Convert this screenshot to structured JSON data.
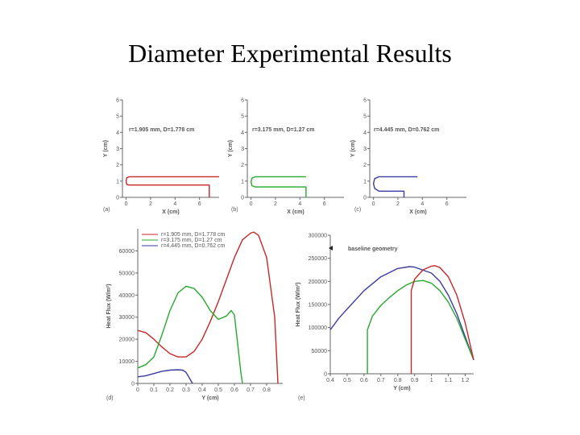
{
  "slide": {
    "title": "Diameter Experimental Results"
  },
  "colors": {
    "red": "#c62828",
    "green": "#27a82f",
    "blue": "#3a3aa0",
    "axis": "#666666"
  },
  "chart_data": [
    {
      "type": "line",
      "panel_label": "(a)",
      "annotation": "r=1.905 mm, D=1.778 cm",
      "xlabel": "X (cm)",
      "ylabel": "Y (cm)",
      "xlim": [
        -0.3,
        7.6
      ],
      "ylim": [
        0,
        6
      ],
      "xticks": [
        0,
        2,
        4,
        6
      ],
      "yticks": [
        0,
        1,
        2,
        3,
        4,
        5,
        6
      ],
      "series": [
        {
          "color": "red",
          "x": [
            7.6,
            0.25,
            0.05,
            0,
            0.05,
            0.25,
            6.8,
            6.8
          ],
          "y": [
            1.27,
            1.27,
            1.2,
            1.0,
            0.8,
            0.76,
            0.76,
            0
          ]
        }
      ]
    },
    {
      "type": "line",
      "panel_label": "(b)",
      "annotation": "r=3.175 mm, D=1.27 cm",
      "xlabel": "X (cm)",
      "ylabel": "Y (cm)",
      "xlim": [
        -0.3,
        7.6
      ],
      "ylim": [
        0,
        6
      ],
      "xticks": [
        0,
        2,
        4,
        6
      ],
      "yticks": [
        0,
        1,
        2,
        3,
        4,
        5,
        6
      ],
      "series": [
        {
          "color": "green",
          "x": [
            4.5,
            0.35,
            0.08,
            0,
            0.08,
            0.35,
            4.5,
            4.5
          ],
          "y": [
            1.27,
            1.27,
            1.18,
            0.95,
            0.72,
            0.64,
            0.64,
            0
          ]
        }
      ]
    },
    {
      "type": "line",
      "panel_label": "(c)",
      "annotation": "r=4.445 mm, D=0.762 cm",
      "xlabel": "X (cm)",
      "ylabel": "Y (cm)",
      "xlim": [
        -0.3,
        7.6
      ],
      "ylim": [
        0,
        6
      ],
      "xticks": [
        0,
        2,
        4,
        6
      ],
      "yticks": [
        0,
        1,
        2,
        3,
        4,
        5,
        6
      ],
      "series": [
        {
          "color": "blue",
          "x": [
            3.6,
            0.45,
            0.1,
            0,
            0.1,
            0.45,
            2.5,
            2.5
          ],
          "y": [
            1.27,
            1.27,
            1.15,
            0.85,
            0.55,
            0.38,
            0.38,
            0
          ]
        }
      ]
    },
    {
      "type": "line",
      "panel_label": "(d)",
      "xlabel": "Y (cm)",
      "ylabel": "Heat Flux (W/m²)",
      "xlim": [
        0,
        0.9
      ],
      "ylim": [
        0,
        70000
      ],
      "xticks": [
        0,
        0.1,
        0.2,
        0.3,
        0.4,
        0.5,
        0.6,
        0.7,
        0.8
      ],
      "yticks": [
        0,
        10000,
        20000,
        30000,
        40000,
        50000,
        60000
      ],
      "legend": [
        "r=1.905 mm, D=1.778 cm",
        "r=3.175 mm, D=1.27 cm",
        "r=4.445 mm, D=0.762 cm"
      ],
      "series": [
        {
          "color": "red",
          "x": [
            0,
            0.05,
            0.1,
            0.15,
            0.2,
            0.25,
            0.3,
            0.35,
            0.4,
            0.45,
            0.5,
            0.55,
            0.6,
            0.65,
            0.7,
            0.72,
            0.75,
            0.8,
            0.85,
            0.87
          ],
          "y": [
            24000,
            23000,
            20000,
            16500,
            13500,
            12000,
            12000,
            14500,
            20000,
            28000,
            37000,
            47000,
            57000,
            65000,
            68000,
            68500,
            67000,
            57000,
            30000,
            0
          ]
        },
        {
          "color": "green",
          "x": [
            0,
            0.05,
            0.1,
            0.15,
            0.2,
            0.25,
            0.3,
            0.35,
            0.4,
            0.45,
            0.5,
            0.55,
            0.58,
            0.6,
            0.62,
            0.64,
            0.65
          ],
          "y": [
            7000,
            8500,
            12000,
            22000,
            33000,
            41000,
            44000,
            43000,
            39000,
            33000,
            29000,
            30500,
            33000,
            31000,
            18000,
            5000,
            0
          ]
        },
        {
          "color": "blue",
          "x": [
            0,
            0.05,
            0.1,
            0.15,
            0.2,
            0.25,
            0.28,
            0.3,
            0.32,
            0.34
          ],
          "y": [
            3000,
            3500,
            4500,
            5500,
            6000,
            6200,
            6000,
            5000,
            2500,
            0
          ]
        }
      ]
    },
    {
      "type": "line",
      "panel_label": "(e)",
      "annotation": "baseline geometry",
      "xlabel": "Y (cm)",
      "ylabel": "Heat Flux (W/m²)",
      "xlim": [
        0.4,
        1.25
      ],
      "ylim": [
        0,
        300000
      ],
      "xticks": [
        0.4,
        0.5,
        0.6,
        0.7,
        0.8,
        0.9,
        1,
        1.1,
        1.2
      ],
      "yticks": [
        0,
        50000,
        100000,
        150000,
        200000,
        250000,
        300000
      ],
      "series": [
        {
          "color": "blue",
          "x": [
            0.4,
            0.45,
            0.5,
            0.6,
            0.7,
            0.8,
            0.87,
            0.9,
            1.0,
            1.05,
            1.1,
            1.15,
            1.2,
            1.25
          ],
          "y": [
            95000,
            120000,
            140000,
            180000,
            210000,
            228000,
            232000,
            231000,
            218000,
            200000,
            170000,
            130000,
            80000,
            30000
          ]
        },
        {
          "color": "green",
          "x": [
            0.62,
            0.62,
            0.65,
            0.7,
            0.75,
            0.8,
            0.85,
            0.9,
            0.95,
            1.0,
            1.05,
            1.1,
            1.15,
            1.2,
            1.25
          ],
          "y": [
            0,
            95000,
            125000,
            148000,
            165000,
            180000,
            192000,
            200000,
            202000,
            196000,
            180000,
            155000,
            120000,
            75000,
            30000
          ]
        },
        {
          "color": "red",
          "x": [
            0.88,
            0.88,
            0.9,
            0.95,
            1.0,
            1.02,
            1.05,
            1.1,
            1.15,
            1.2,
            1.25
          ],
          "y": [
            0,
            180000,
            205000,
            225000,
            233000,
            234000,
            230000,
            210000,
            170000,
            110000,
            30000
          ]
        }
      ]
    }
  ]
}
